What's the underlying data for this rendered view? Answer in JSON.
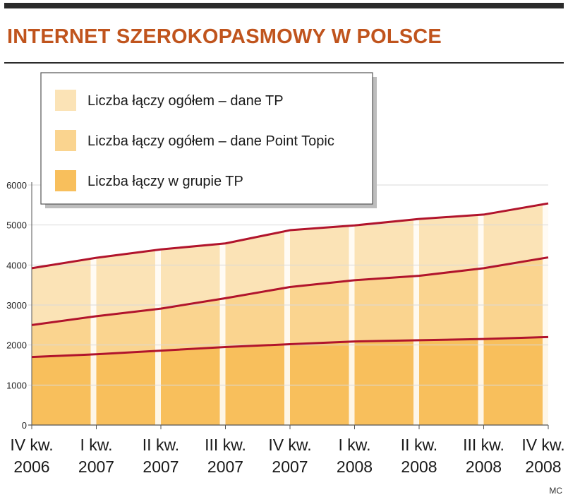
{
  "title": "INTERNET SZEROKOPASMOWY W POLSCE",
  "source": "MC",
  "colors": {
    "band_light": "#fbe3b6",
    "band_mid": "#fad48f",
    "band_dark": "#f8bf5c",
    "line": "#b1142c",
    "title": "#c0541d",
    "grid": "#d9d9d9"
  },
  "chart_data": {
    "type": "area",
    "categories": [
      [
        "IV kw.",
        "2006"
      ],
      [
        "I kw.",
        "2007"
      ],
      [
        "II kw.",
        "2007"
      ],
      [
        "III kw.",
        "2007"
      ],
      [
        "IV kw.",
        "2007"
      ],
      [
        "I kw.",
        "2008"
      ],
      [
        "II kw.",
        "2008"
      ],
      [
        "III kw.",
        "2008"
      ],
      [
        "IV kw.",
        "2008"
      ]
    ],
    "series": [
      {
        "name": "Liczba łączy ogółem – dane TP",
        "values": [
          3920,
          4180,
          4390,
          4540,
          4870,
          4990,
          5150,
          5260,
          5540
        ]
      },
      {
        "name": "Liczba łączy ogółem – dane Point Topic",
        "values": [
          2500,
          2720,
          2910,
          3170,
          3450,
          3620,
          3730,
          3920,
          4190
        ]
      },
      {
        "name": "Liczba łączy w grupie TP",
        "values": [
          1700,
          1770,
          1860,
          1950,
          2020,
          2090,
          2120,
          2150,
          2200
        ]
      }
    ],
    "yticks": [
      0,
      1000,
      2000,
      3000,
      4000,
      5000,
      6000
    ],
    "ylim": [
      0,
      6000
    ],
    "grid": true,
    "legend_position": "top-left"
  }
}
